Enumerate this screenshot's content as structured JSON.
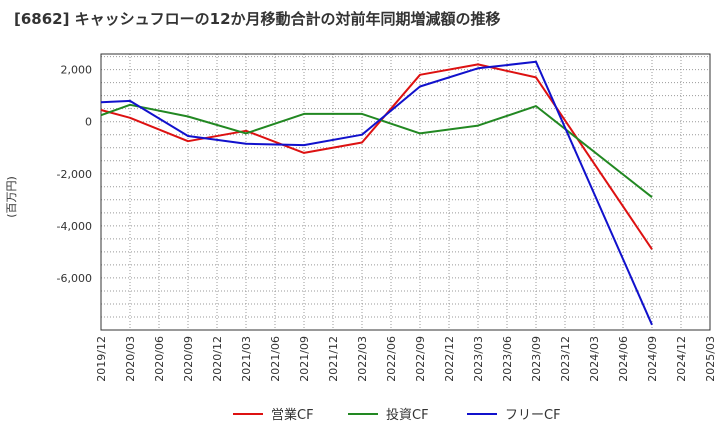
{
  "chart_data": {
    "type": "line",
    "title": "[6862]  キャッシュフローの12か月移動合計の対前年同期増減額の推移",
    "xlabel": "",
    "ylabel": "(百万円)",
    "x_ticks": [
      "2019/12",
      "2020/03",
      "2020/06",
      "2020/09",
      "2020/12",
      "2021/03",
      "2021/06",
      "2021/09",
      "2021/12",
      "2022/03",
      "2022/06",
      "2022/09",
      "2022/12",
      "2023/03",
      "2023/06",
      "2023/09",
      "2023/12",
      "2024/03",
      "2024/06",
      "2024/09",
      "2024/12",
      "2025/03"
    ],
    "y_ticks": [
      2000,
      0,
      -2000,
      -4000,
      -6000
    ],
    "y_tick_labels": [
      "2,000",
      "0",
      "-2,000",
      "-4,000",
      "-6,000"
    ],
    "ylim": [
      -8000,
      2600
    ],
    "grid": true,
    "legend": "bottom",
    "series": [
      {
        "name": "営業CF",
        "color": "#dd1111",
        "x": [
          "2019/12",
          "2020/03",
          "2020/09",
          "2021/03",
          "2021/09",
          "2022/03",
          "2022/09",
          "2023/03",
          "2023/09",
          "2024/09"
        ],
        "values": [
          450,
          150,
          -750,
          -350,
          -1200,
          -800,
          1800,
          2200,
          1700,
          -4900
        ]
      },
      {
        "name": "投資CF",
        "color": "#228822",
        "x": [
          "2019/12",
          "2020/03",
          "2020/09",
          "2021/03",
          "2021/09",
          "2022/03",
          "2022/09",
          "2023/03",
          "2023/09",
          "2024/09"
        ],
        "values": [
          250,
          650,
          200,
          -450,
          300,
          300,
          -450,
          -150,
          600,
          -2900
        ]
      },
      {
        "name": "フリーCF",
        "color": "#1111cc",
        "x": [
          "2019/12",
          "2020/03",
          "2020/09",
          "2021/03",
          "2021/09",
          "2022/03",
          "2022/09",
          "2023/03",
          "2023/09",
          "2024/09"
        ],
        "values": [
          750,
          800,
          -550,
          -850,
          -900,
          -500,
          1350,
          2050,
          2300,
          -7800
        ]
      }
    ]
  }
}
